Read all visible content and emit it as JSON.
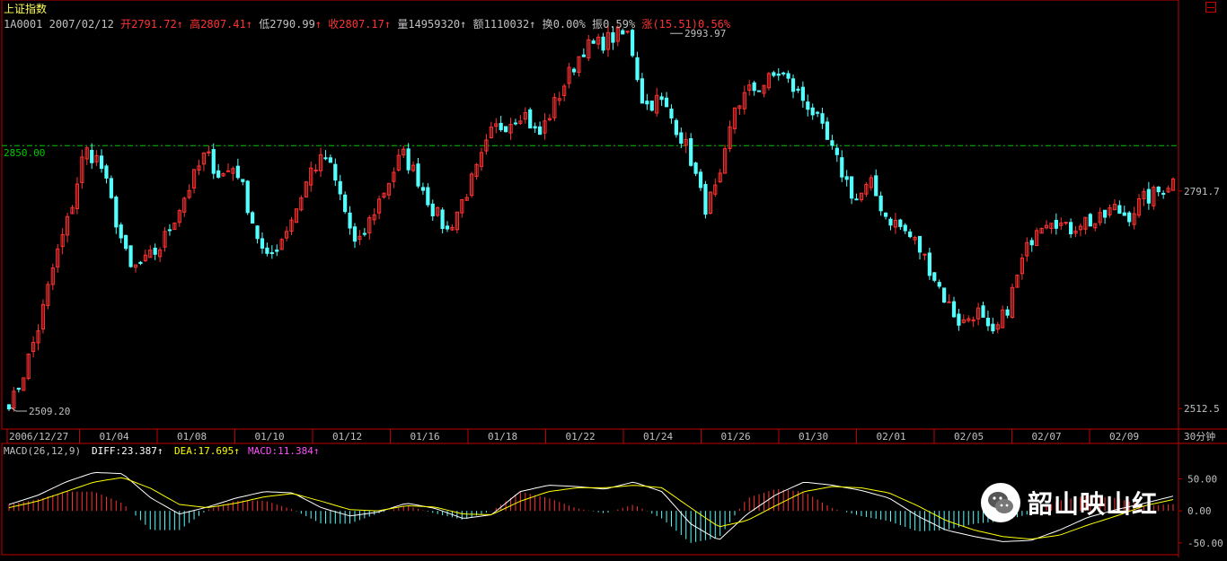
{
  "header": {
    "title": "上证指数",
    "code": "1A0001",
    "date": "2007/02/12",
    "open_label": "开",
    "open": "2791.72",
    "high_label": "高",
    "high": "2807.41",
    "low_label": "低",
    "low": "2790.99",
    "close_label": "收",
    "close": "2807.17",
    "vol_label": "量",
    "vol": "14959320",
    "amt_label": "额",
    "amt": "1110032",
    "turn_label": "换",
    "turn": "0.00%",
    "amp_label": "振",
    "amp": "0.59%",
    "chg_label": "涨",
    "chg": "(15.51)0.56%",
    "arrow": "↑"
  },
  "colors": {
    "up": "#ff3232",
    "down": "#54ffff",
    "axis": "#c00000",
    "refline": "#00c800",
    "diff": "#ffffff",
    "dea": "#ffff00",
    "macd": "#ff50ff"
  },
  "chart_data": {
    "type": "candlestick",
    "period": "30分钟",
    "y_range": [
      2500,
      3000
    ],
    "y_ticks": [
      "2791.7",
      "2512.5"
    ],
    "reference_line": {
      "label": "2850.00",
      "value": 2850.0
    },
    "annotations": {
      "max": "2993.97",
      "min": "2509.20"
    },
    "x_ticks": [
      "2006/12/27",
      "01/04",
      "01/08",
      "01/10",
      "01/12",
      "01/16",
      "01/18",
      "01/22",
      "01/24",
      "01/26",
      "01/30",
      "02/01",
      "02/05",
      "02/07",
      "02/09"
    ],
    "price_path": [
      2509,
      2560,
      2620,
      2700,
      2760,
      2845,
      2830,
      2760,
      2690,
      2700,
      2720,
      2760,
      2800,
      2840,
      2810,
      2825,
      2760,
      2700,
      2730,
      2770,
      2820,
      2835,
      2780,
      2715,
      2760,
      2800,
      2840,
      2810,
      2770,
      2740,
      2780,
      2820,
      2870,
      2880,
      2895,
      2860,
      2900,
      2940,
      2975,
      2980,
      2990,
      2993,
      2900,
      2910,
      2880,
      2840,
      2770,
      2800,
      2900,
      2920,
      2930,
      2945,
      2920,
      2900,
      2860,
      2820,
      2780,
      2800,
      2760,
      2745,
      2725,
      2690,
      2650,
      2620,
      2640,
      2600,
      2640,
      2700,
      2750,
      2760,
      2740,
      2755,
      2750,
      2770,
      2760,
      2780,
      2790,
      2807
    ],
    "macd": {
      "label": "MACD(26,12,9)",
      "diff_label": "DIFF:23.387",
      "dea_label": "DEA:17.695",
      "macd_label": "MACD:11.384",
      "y_range": [
        -60,
        80
      ],
      "y_ticks": [
        "50.00",
        "0.00",
        "-50.00"
      ],
      "diff": [
        10,
        24,
        45,
        60,
        58,
        20,
        -5,
        6,
        20,
        30,
        28,
        5,
        -8,
        -2,
        12,
        4,
        -12,
        -6,
        30,
        40,
        38,
        34,
        45,
        30,
        -20,
        -46,
        -5,
        25,
        45,
        40,
        32,
        20,
        -8,
        -30,
        -40,
        -48,
        -46,
        -30,
        -10,
        2,
        12,
        23
      ],
      "dea": [
        5,
        15,
        30,
        45,
        52,
        35,
        10,
        5,
        12,
        22,
        27,
        15,
        2,
        0,
        8,
        6,
        -5,
        -6,
        15,
        30,
        36,
        36,
        40,
        36,
        5,
        -25,
        -15,
        8,
        30,
        38,
        36,
        28,
        8,
        -15,
        -30,
        -40,
        -44,
        -38,
        -22,
        -8,
        8,
        17.7
      ]
    }
  },
  "watermark": {
    "text": "韶山映山红",
    "icon": "wechat-icon"
  }
}
